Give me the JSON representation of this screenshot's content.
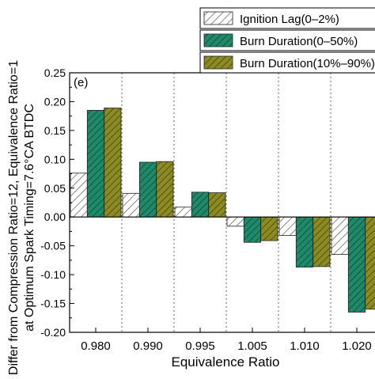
{
  "chart_data": {
    "type": "bar",
    "panel_label": "(e)",
    "xlabel": "Equivalence Ratio",
    "ylabel_lines": [
      "Differ from Compression Ratio=12, Equivalence Ratio=1",
      "at Optimum Spark Timing=7.6°CA BTDC"
    ],
    "categories": [
      "0.980",
      "0.990",
      "0.995",
      "1.005",
      "1.010",
      "1.020"
    ],
    "ylim": [
      -0.2,
      0.25
    ],
    "yticks": [
      "-0.20",
      "-0.15",
      "-0.10",
      "-0.05",
      "0.00",
      "0.05",
      "0.10",
      "0.15",
      "0.20",
      "0.25"
    ],
    "ytick_values": [
      -0.2,
      -0.15,
      -0.1,
      -0.05,
      0.0,
      0.05,
      0.1,
      0.15,
      0.2,
      0.25
    ],
    "legend_position": "top-right",
    "series": [
      {
        "name": "Ignition Lag(0–2%)",
        "fill": "#ffffff",
        "hatch": "#555555",
        "values": [
          0.076,
          0.041,
          0.017,
          -0.016,
          -0.032,
          -0.065
        ]
      },
      {
        "name": "Burn Duration(0–50%)",
        "fill": "#1f8a6a",
        "hatch": "#0d3d2e",
        "values": [
          0.185,
          0.095,
          0.043,
          -0.044,
          -0.087,
          -0.165
        ]
      },
      {
        "name": "Burn Duration(10%–90%)",
        "fill": "#8c8a22",
        "hatch": "#3d3c08",
        "values": [
          0.189,
          0.096,
          0.042,
          -0.041,
          -0.086,
          -0.16
        ]
      }
    ]
  }
}
